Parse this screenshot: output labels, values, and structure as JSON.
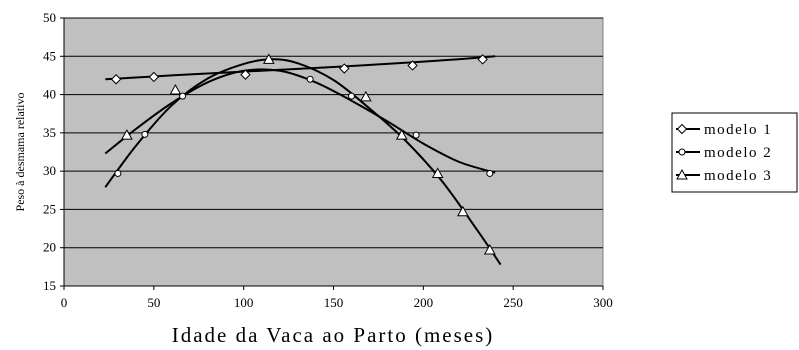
{
  "chart_data": {
    "type": "scatter",
    "xlabel": "Idade da Vaca ao Parto (meses)",
    "ylabel": "Peso à desmama relativo",
    "xlim": [
      0,
      300
    ],
    "ylim": [
      15,
      50
    ],
    "xticks": [
      0,
      50,
      100,
      150,
      200,
      250,
      300
    ],
    "yticks": [
      15,
      20,
      25,
      30,
      35,
      40,
      45,
      50
    ],
    "grid": "horizontal",
    "plot_background": "#c0c0c0",
    "legend_position": "right",
    "series": [
      {
        "name": "modelo 1",
        "marker": "diamond",
        "points": [
          [
            29,
            42.0
          ],
          [
            50,
            42.3
          ],
          [
            101,
            42.6
          ],
          [
            156,
            43.4
          ],
          [
            194,
            43.8
          ],
          [
            233,
            44.6
          ]
        ],
        "curve": [
          [
            23,
            42.0
          ],
          [
            60,
            42.5
          ],
          [
            100,
            43.0
          ],
          [
            150,
            43.6
          ],
          [
            200,
            44.3
          ],
          [
            240,
            45.0
          ]
        ]
      },
      {
        "name": "modelo 2",
        "marker": "circle",
        "points": [
          [
            30,
            29.7
          ],
          [
            45,
            34.8
          ],
          [
            66,
            39.8
          ],
          [
            137,
            42.0
          ],
          [
            160,
            39.8
          ],
          [
            196,
            34.7
          ],
          [
            237,
            29.7
          ]
        ],
        "curve": [
          [
            23,
            32.3
          ],
          [
            40,
            35.5
          ],
          [
            60,
            38.9
          ],
          [
            80,
            41.6
          ],
          [
            100,
            43.1
          ],
          [
            120,
            43.1
          ],
          [
            140,
            41.6
          ],
          [
            160,
            39.2
          ],
          [
            180,
            36.5
          ],
          [
            200,
            33.6
          ],
          [
            220,
            31.2
          ],
          [
            240,
            29.8
          ]
        ]
      },
      {
        "name": "modelo 3",
        "marker": "triangle",
        "points": [
          [
            35,
            34.7
          ],
          [
            62,
            40.6
          ],
          [
            114,
            44.6
          ],
          [
            168,
            39.7
          ],
          [
            188,
            34.7
          ],
          [
            208,
            29.7
          ],
          [
            222,
            24.7
          ],
          [
            237,
            19.7
          ]
        ],
        "curve": [
          [
            23,
            27.9
          ],
          [
            40,
            33.3
          ],
          [
            60,
            38.6
          ],
          [
            80,
            42.1
          ],
          [
            100,
            44.0
          ],
          [
            115,
            44.6
          ],
          [
            130,
            44.1
          ],
          [
            150,
            41.9
          ],
          [
            170,
            38.2
          ],
          [
            190,
            34.0
          ],
          [
            210,
            28.8
          ],
          [
            230,
            22.3
          ],
          [
            243,
            17.8
          ]
        ]
      }
    ]
  }
}
